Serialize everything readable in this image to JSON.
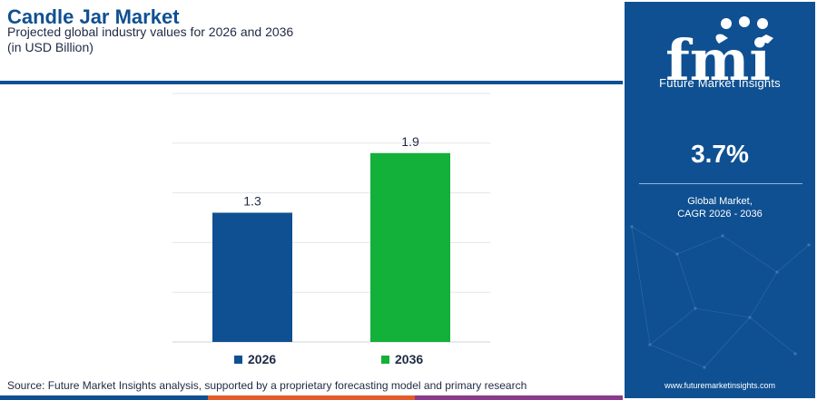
{
  "title": "Candle Jar Market",
  "subtitle": "Projected global industry values for 2026 and 2036",
  "unit": "(in USD Billion)",
  "source": "Source: Future Market Insights analysis, supported by a proprietary forecasting model and primary research",
  "sidebar": {
    "brand_letters": "fmi",
    "brand_name": "Future Market Insights",
    "cagr_value": "3.7%",
    "cagr_label_line1": "Global Market,",
    "cagr_label_line2": "CAGR 2026 - 2036",
    "website": "www.futuremarketinsights.com"
  },
  "colors": {
    "brand_blue": "#0f5092",
    "bar_2026": "#0f5092",
    "bar_2036": "#13b03a",
    "strip": [
      "#0f5092",
      "#e35b2a",
      "#8a3a8a"
    ]
  },
  "chart_data": {
    "type": "bar",
    "categories": [
      "2026",
      "2036"
    ],
    "values": [
      1.3,
      1.9
    ],
    "data_labels": [
      "1.3",
      "1.9"
    ],
    "colors": [
      "#0f5092",
      "#13b03a"
    ],
    "legend": [
      "2026",
      "2036"
    ],
    "legend_position": "bottom",
    "ylim": [
      0,
      2.5
    ],
    "grid": true,
    "title": "Candle Jar Market",
    "xlabel": "",
    "ylabel": ""
  }
}
